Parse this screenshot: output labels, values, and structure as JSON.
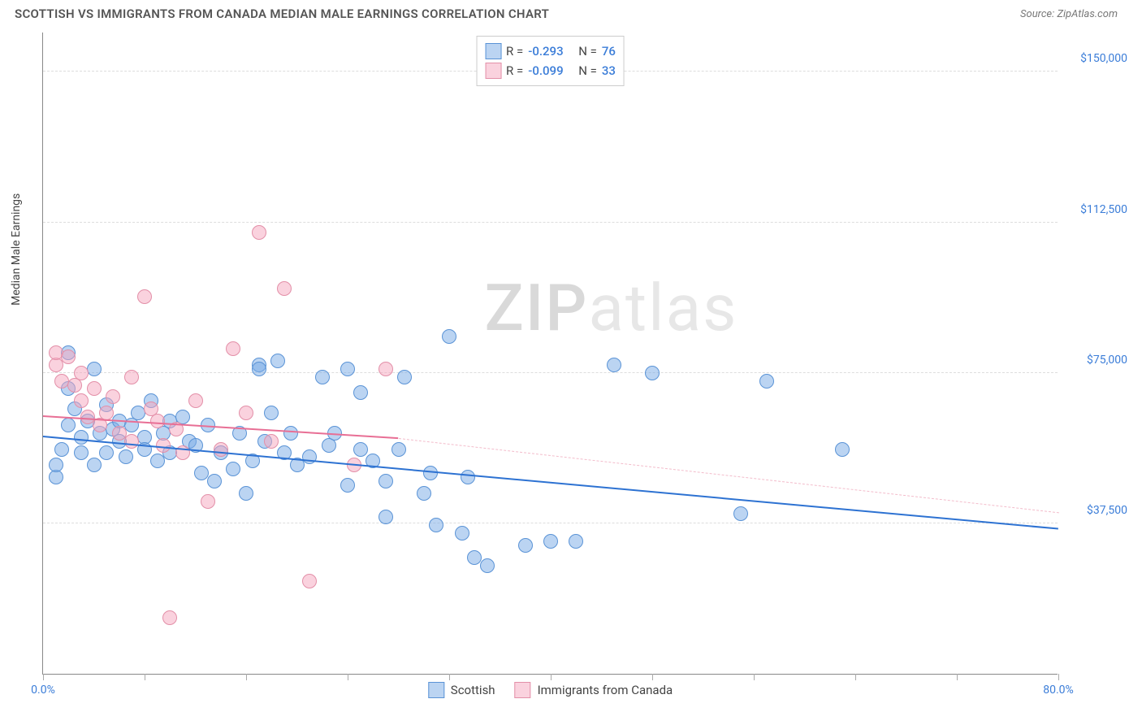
{
  "title": "SCOTTISH VS IMMIGRANTS FROM CANADA MEDIAN MALE EARNINGS CORRELATION CHART",
  "source_label": "Source: ",
  "source_value": "ZipAtlas.com",
  "ylabel": "Median Male Earnings",
  "watermark_a": "ZIP",
  "watermark_b": "atlas",
  "chart": {
    "type": "scatter",
    "background_color": "#ffffff",
    "grid_color": "#dddddd",
    "axis_color": "#888888",
    "tick_label_color": "#3b7dd8",
    "label_fontsize": 14,
    "title_fontsize": 15,
    "xlim": [
      0,
      80
    ],
    "ylim": [
      0,
      160000
    ],
    "x_axis": {
      "min_label": "0.0%",
      "max_label": "80.0%",
      "tick_positions": [
        0,
        8,
        16,
        24,
        32,
        40,
        48,
        56,
        64,
        72,
        80
      ]
    },
    "y_axis": {
      "gridlines": [
        {
          "value": 37500,
          "label": "$37,500"
        },
        {
          "value": 75000,
          "label": "$75,000"
        },
        {
          "value": 112500,
          "label": "$112,500"
        },
        {
          "value": 150000,
          "label": "$150,000"
        }
      ]
    },
    "marker_radius": 9,
    "marker_opacity": 0.55,
    "series": [
      {
        "name": "Scottish",
        "fill": "rgba(120,170,230,0.5)",
        "stroke": "#5a93d6",
        "r_label": "R =",
        "r_value": "-0.293",
        "n_label": "N =",
        "n_value": "76",
        "trend": {
          "solid": {
            "x1": 0,
            "y1": 59000,
            "x2": 80,
            "y2": 36000,
            "color": "#2d72d2",
            "width": 2.5
          }
        },
        "points": [
          [
            1,
            49000
          ],
          [
            1,
            52000
          ],
          [
            1.5,
            56000
          ],
          [
            2,
            80000
          ],
          [
            2,
            71000
          ],
          [
            2,
            62000
          ],
          [
            2.5,
            66000
          ],
          [
            3,
            55000
          ],
          [
            3,
            59000
          ],
          [
            3.5,
            63000
          ],
          [
            4,
            76000
          ],
          [
            4,
            52000
          ],
          [
            4.5,
            60000
          ],
          [
            5,
            67000
          ],
          [
            5,
            55000
          ],
          [
            5.5,
            61000
          ],
          [
            6,
            58000
          ],
          [
            6,
            63000
          ],
          [
            6.5,
            54000
          ],
          [
            7,
            62000
          ],
          [
            7.5,
            65000
          ],
          [
            8,
            59000
          ],
          [
            8,
            56000
          ],
          [
            8.5,
            68000
          ],
          [
            9,
            53000
          ],
          [
            9.5,
            60000
          ],
          [
            10,
            63000
          ],
          [
            10,
            55000
          ],
          [
            11,
            64000
          ],
          [
            11.5,
            58000
          ],
          [
            12,
            57000
          ],
          [
            12.5,
            50000
          ],
          [
            13,
            62000
          ],
          [
            13.5,
            48000
          ],
          [
            14,
            55000
          ],
          [
            15,
            51000
          ],
          [
            15.5,
            60000
          ],
          [
            16,
            45000
          ],
          [
            16.5,
            53000
          ],
          [
            17,
            77000
          ],
          [
            17,
            76000
          ],
          [
            17.5,
            58000
          ],
          [
            18,
            65000
          ],
          [
            18.5,
            78000
          ],
          [
            19,
            55000
          ],
          [
            19.5,
            60000
          ],
          [
            20,
            52000
          ],
          [
            21,
            54000
          ],
          [
            22,
            74000
          ],
          [
            22.5,
            57000
          ],
          [
            23,
            60000
          ],
          [
            24,
            47000
          ],
          [
            24,
            76000
          ],
          [
            25,
            70000
          ],
          [
            25,
            56000
          ],
          [
            26,
            53000
          ],
          [
            27,
            39000
          ],
          [
            27,
            48000
          ],
          [
            28,
            56000
          ],
          [
            28.5,
            74000
          ],
          [
            30,
            45000
          ],
          [
            30.5,
            50000
          ],
          [
            31,
            37000
          ],
          [
            32,
            84000
          ],
          [
            33,
            35000
          ],
          [
            33.5,
            49000
          ],
          [
            34,
            29000
          ],
          [
            35,
            27000
          ],
          [
            38,
            32000
          ],
          [
            40,
            33000
          ],
          [
            42,
            33000
          ],
          [
            45,
            77000
          ],
          [
            48,
            75000
          ],
          [
            55,
            40000
          ],
          [
            57,
            73000
          ],
          [
            63,
            56000
          ]
        ]
      },
      {
        "name": "Immigrants from Canada",
        "fill": "rgba(245,165,190,0.5)",
        "stroke": "#e38fa8",
        "r_label": "R =",
        "r_value": "-0.099",
        "n_label": "N =",
        "n_value": "33",
        "trend": {
          "solid": {
            "x1": 0,
            "y1": 64000,
            "x2": 28,
            "y2": 58500,
            "color": "#e86f95",
            "width": 2
          },
          "dashed": {
            "x1": 28,
            "y1": 58500,
            "x2": 80,
            "y2": 40000,
            "color": "#f3bccb",
            "width": 1.5
          }
        },
        "points": [
          [
            1,
            77000
          ],
          [
            1,
            80000
          ],
          [
            1.5,
            73000
          ],
          [
            2,
            79000
          ],
          [
            2.5,
            72000
          ],
          [
            3,
            75000
          ],
          [
            3,
            68000
          ],
          [
            3.5,
            64000
          ],
          [
            4,
            71000
          ],
          [
            4.5,
            62000
          ],
          [
            5,
            65000
          ],
          [
            5.5,
            69000
          ],
          [
            6,
            60000
          ],
          [
            7,
            74000
          ],
          [
            7,
            58000
          ],
          [
            8,
            94000
          ],
          [
            8.5,
            66000
          ],
          [
            9,
            63000
          ],
          [
            9.5,
            57000
          ],
          [
            10,
            14000
          ],
          [
            10.5,
            61000
          ],
          [
            11,
            55000
          ],
          [
            12,
            68000
          ],
          [
            13,
            43000
          ],
          [
            14,
            56000
          ],
          [
            15,
            81000
          ],
          [
            16,
            65000
          ],
          [
            17,
            110000
          ],
          [
            18,
            58000
          ],
          [
            19,
            96000
          ],
          [
            21,
            23000
          ],
          [
            24.5,
            52000
          ],
          [
            27,
            76000
          ]
        ]
      }
    ]
  }
}
